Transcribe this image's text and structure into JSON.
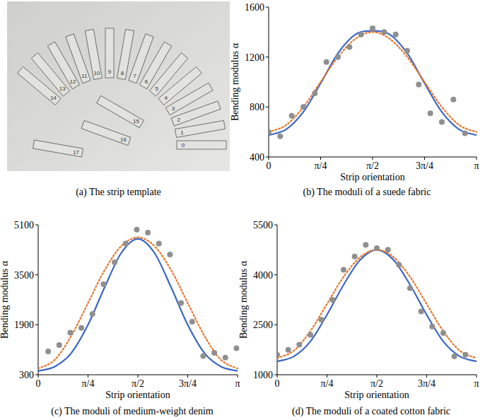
{
  "photo": {
    "caption": "(a) The strip template",
    "strip_labels": [
      "0",
      "1",
      "2",
      "3",
      "4",
      "5",
      "6",
      "7",
      "8",
      "9",
      "10",
      "11",
      "12",
      "13",
      "14",
      "15",
      "16",
      "17"
    ]
  },
  "chart_data": [
    {
      "type": "scatter",
      "title": "(b) The moduli of a suede fabric",
      "x_label": "Strip orientation",
      "y_label": "Bending modulus α",
      "xlim": [
        0,
        3.1416
      ],
      "ylim": [
        400,
        1600
      ],
      "xticks": [
        0,
        {
          "value": 0.7854,
          "label": "π/4"
        },
        {
          "value": 1.5708,
          "label": "π/2"
        },
        {
          "value": 2.3562,
          "label": "3π/4"
        },
        {
          "value": 3.1416,
          "label": "π"
        }
      ],
      "yticks": [
        400,
        800,
        1200,
        1600
      ],
      "series": [
        {
          "type": "scatter",
          "color": "#8f8f8f",
          "marker": "circle",
          "x": [
            0,
            0.1745,
            0.3491,
            0.5236,
            0.6981,
            0.8727,
            1.0472,
            1.2217,
            1.3963,
            1.5708,
            1.7453,
            1.9199,
            2.0944,
            2.2689,
            2.4435,
            2.618,
            2.7925,
            2.9671
          ],
          "values": [
            600,
            565,
            730,
            800,
            910,
            1160,
            1200,
            1280,
            1380,
            1430,
            1400,
            1380,
            1250,
            980,
            750,
            680,
            860,
            590
          ]
        },
        {
          "type": "line",
          "color": "#3a66c4",
          "line_style": "solid",
          "x": [
            0,
            0.2618,
            0.5236,
            0.7854,
            1.0472,
            1.309,
            1.5708,
            1.8326,
            2.0944,
            2.3562,
            2.618,
            2.8798,
            3.1416
          ],
          "values": [
            575,
            620,
            760,
            990,
            1230,
            1380,
            1410,
            1380,
            1230,
            990,
            760,
            620,
            575
          ]
        },
        {
          "type": "line",
          "color": "#e8762c",
          "line_style": "dotted",
          "x": [
            0,
            0.2618,
            0.5236,
            0.7854,
            1.0472,
            1.309,
            1.5708,
            1.8326,
            2.0944,
            2.3562,
            2.618,
            2.8798,
            3.1416
          ],
          "values": [
            600,
            655,
            800,
            1000,
            1200,
            1345,
            1400,
            1345,
            1200,
            1000,
            800,
            655,
            600
          ]
        }
      ]
    },
    {
      "type": "scatter",
      "title": "(c) The moduli of medium-weight denim",
      "x_label": "Strip orientation",
      "y_label": "Bending modulus α",
      "xlim": [
        0,
        3.1416
      ],
      "ylim": [
        300,
        5100
      ],
      "xticks": [
        0,
        {
          "value": 0.7854,
          "label": "π/4"
        },
        {
          "value": 1.5708,
          "label": "π/2"
        },
        {
          "value": 2.3562,
          "label": "3π/4"
        },
        {
          "value": 3.1416,
          "label": "π"
        }
      ],
      "yticks": [
        300,
        1900,
        3500,
        5100
      ],
      "series": [
        {
          "type": "scatter",
          "color": "#8f8f8f",
          "marker": "circle",
          "x": [
            0.1571,
            0.3316,
            0.5061,
            0.6807,
            0.8552,
            1.0297,
            1.2043,
            1.3788,
            1.5533,
            1.7279,
            1.9024,
            2.0769,
            2.2515,
            2.426,
            2.6005,
            2.7751,
            2.9496,
            3.1241
          ],
          "values": [
            1050,
            1250,
            1650,
            1800,
            2250,
            3200,
            3900,
            4500,
            4950,
            4850,
            4500,
            4150,
            2600,
            2000,
            900,
            1000,
            850,
            1150
          ]
        },
        {
          "type": "line",
          "color": "#3a66c4",
          "line_style": "solid",
          "x": [
            0,
            0.2618,
            0.5236,
            0.7854,
            1.0472,
            1.309,
            1.5708,
            1.8326,
            2.0944,
            2.3562,
            2.618,
            2.8798,
            3.1416
          ],
          "values": [
            420,
            560,
            1000,
            1900,
            3100,
            4200,
            4650,
            4200,
            3100,
            1900,
            1000,
            560,
            420
          ]
        },
        {
          "type": "line",
          "color": "#e8762c",
          "line_style": "dotted",
          "x": [
            0,
            0.2618,
            0.5236,
            0.7854,
            1.0472,
            1.309,
            1.5708,
            1.8326,
            2.0944,
            2.3562,
            2.618,
            2.8798,
            3.1416
          ],
          "values": [
            500,
            780,
            1550,
            2600,
            3650,
            4420,
            4700,
            4420,
            3650,
            2600,
            1550,
            780,
            500
          ]
        }
      ]
    },
    {
      "type": "scatter",
      "title": "(d) The moduli of a coated cotton fabric",
      "x_label": "Strip orientation",
      "y_label": "Bending modulus α",
      "xlim": [
        0,
        3.1416
      ],
      "ylim": [
        1000,
        5500
      ],
      "xticks": [
        0,
        {
          "value": 0.7854,
          "label": "π/4"
        },
        {
          "value": 1.5708,
          "label": "π/2"
        },
        {
          "value": 2.3562,
          "label": "3π/4"
        },
        {
          "value": 3.1416,
          "label": "π"
        }
      ],
      "yticks": [
        1000,
        2500,
        4000,
        5500
      ],
      "series": [
        {
          "type": "scatter",
          "color": "#8f8f8f",
          "marker": "circle",
          "x": [
            0,
            0.1745,
            0.3491,
            0.5236,
            0.6981,
            0.8727,
            1.0472,
            1.2217,
            1.3963,
            1.5708,
            1.7453,
            1.9199,
            2.0944,
            2.2689,
            2.4435,
            2.618,
            2.7925,
            2.9671
          ],
          "values": [
            1600,
            1750,
            1900,
            2200,
            2650,
            3250,
            4150,
            4550,
            4900,
            4800,
            4750,
            4300,
            3600,
            2900,
            2450,
            2250,
            1550,
            1600
          ]
        },
        {
          "type": "line",
          "color": "#3a66c4",
          "line_style": "solid",
          "x": [
            0,
            0.2618,
            0.5236,
            0.7854,
            1.0472,
            1.309,
            1.5708,
            1.8326,
            2.0944,
            2.3562,
            2.618,
            2.8798,
            3.1416
          ],
          "values": [
            1400,
            1550,
            2000,
            2800,
            3700,
            4450,
            4750,
            4450,
            3700,
            2800,
            2000,
            1550,
            1400
          ]
        },
        {
          "type": "line",
          "color": "#e8762c",
          "line_style": "dotted",
          "x": [
            0,
            0.2618,
            0.5236,
            0.7854,
            1.0472,
            1.309,
            1.5708,
            1.8326,
            2.0944,
            2.3562,
            2.618,
            2.8798,
            3.1416
          ],
          "values": [
            1500,
            1720,
            2310,
            3125,
            3940,
            4530,
            4750,
            4530,
            3940,
            3125,
            2310,
            1720,
            1500
          ]
        }
      ]
    }
  ]
}
